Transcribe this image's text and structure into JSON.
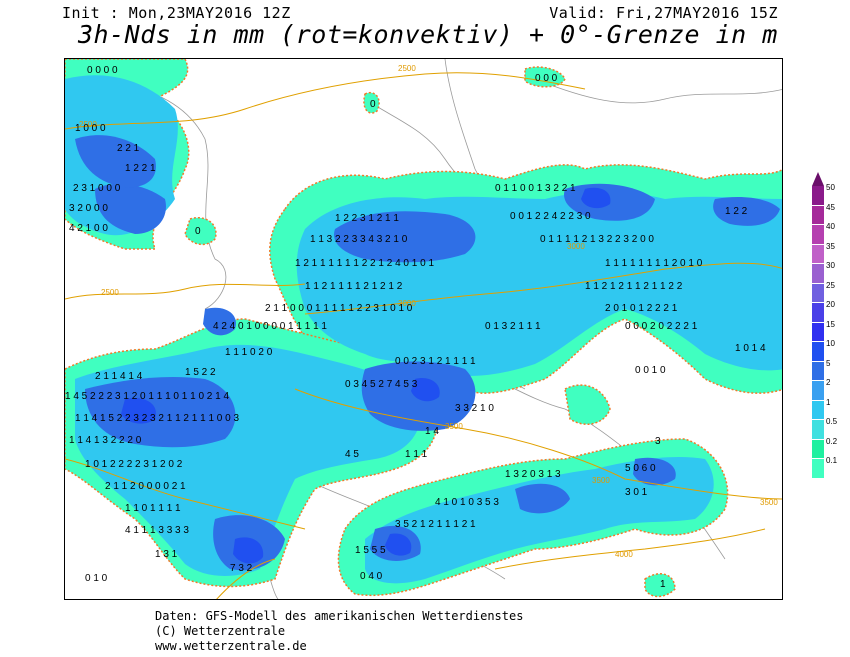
{
  "header": {
    "init": "Init : Mon,23MAY2016 12Z",
    "valid": "Valid: Fri,27MAY2016 15Z",
    "title": "3h-Nds in mm (rot=konvektiv) + 0°-Grenze in m"
  },
  "legend": {
    "labels": [
      "50",
      "45",
      "40",
      "35",
      "30",
      "25",
      "20",
      "15",
      "10",
      "5",
      "2",
      "1",
      "0.5",
      "0.2",
      "0.1"
    ],
    "colors": [
      "#8a1a8a",
      "#a52a9a",
      "#b540b0",
      "#c060c8",
      "#9a60d0",
      "#7060e0",
      "#4a40e8",
      "#3030f0",
      "#2050f0",
      "#2f6fe6",
      "#3aa0f0",
      "#30c8f0",
      "#40e0e0",
      "#20f0a0",
      "#40ffc0"
    ]
  },
  "isolines": [
    "2500",
    "2500",
    "2500",
    "3000",
    "3000",
    "3500",
    "3500",
    "3500",
    "4000"
  ],
  "footer": {
    "line1": "Daten: GFS-Modell des amerikanischen Wetterdienstes",
    "line2": "(C) Wetterzentrale",
    "line3": "www.wetterzentrale.de"
  }
}
